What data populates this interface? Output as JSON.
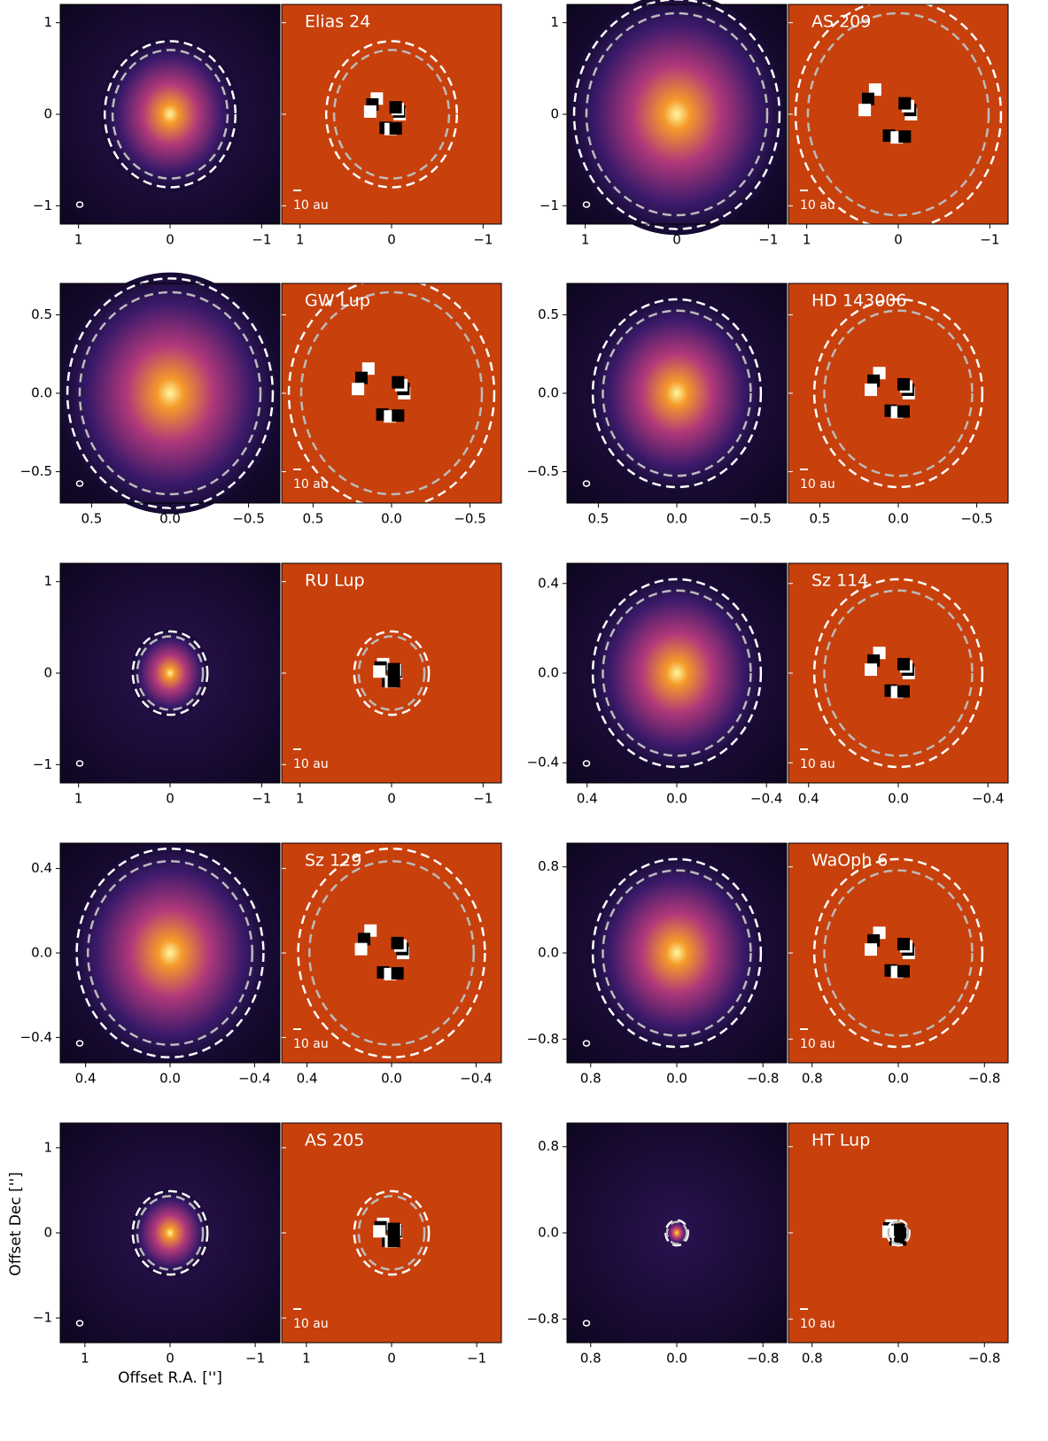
{
  "chart_data": [
    {
      "type": "image-pair",
      "title": "Elias 24",
      "scale_label": "10 au",
      "xlim": [
        1.2,
        -1.2
      ],
      "ylim": [
        -1.2,
        1.2
      ],
      "xticks": [
        1,
        0,
        {
          "value": -1,
          "label": "−1"
        }
      ],
      "yticks": [
        {
          "value": -1,
          "label": "−1"
        },
        0,
        1
      ]
    },
    {
      "type": "image-pair",
      "title": "AS 209",
      "scale_label": "10 au",
      "xlim": [
        1.2,
        -1.2
      ],
      "ylim": [
        -1.2,
        1.2
      ],
      "xticks": [
        1,
        0,
        {
          "value": -1,
          "label": "−1"
        }
      ],
      "yticks": [
        {
          "value": -1,
          "label": "−1"
        },
        0,
        1
      ]
    },
    {
      "type": "image-pair",
      "title": "GW Lup",
      "scale_label": "10 au",
      "xlim": [
        0.7,
        -0.7
      ],
      "ylim": [
        -0.7,
        0.7
      ],
      "xticks": [
        0.5,
        {
          "value": 0,
          "label": "0.0"
        },
        {
          "value": -0.5,
          "label": "−0.5"
        }
      ],
      "yticks": [
        {
          "value": -0.5,
          "label": "−0.5"
        },
        {
          "value": 0,
          "label": "0.0"
        },
        0.5
      ]
    },
    {
      "type": "image-pair",
      "title": "HD 143006",
      "scale_label": "10 au",
      "xlim": [
        0.7,
        -0.7
      ],
      "ylim": [
        -0.7,
        0.7
      ],
      "xticks": [
        0.5,
        {
          "value": 0,
          "label": "0.0"
        },
        {
          "value": -0.5,
          "label": "−0.5"
        }
      ],
      "yticks": [
        {
          "value": -0.5,
          "label": "−0.5"
        },
        {
          "value": 0,
          "label": "0.0"
        },
        0.5
      ]
    },
    {
      "type": "image-pair",
      "title": "RU Lup",
      "scale_label": "10 au",
      "xlim": [
        1.2,
        -1.2
      ],
      "ylim": [
        -1.2,
        1.2
      ],
      "xticks": [
        1,
        0,
        {
          "value": -1,
          "label": "−1"
        }
      ],
      "yticks": [
        {
          "value": -1,
          "label": "−1"
        },
        0,
        1
      ]
    },
    {
      "type": "image-pair",
      "title": "Sz 114",
      "scale_label": "10 au",
      "xlim": [
        0.49,
        -0.49
      ],
      "ylim": [
        -0.49,
        0.49
      ],
      "xticks": [
        0.4,
        {
          "value": 0,
          "label": "0.0"
        },
        {
          "value": -0.4,
          "label": "−0.4"
        }
      ],
      "yticks": [
        {
          "value": -0.4,
          "label": "−0.4"
        },
        {
          "value": 0,
          "label": "0.0"
        },
        0.4
      ]
    },
    {
      "type": "image-pair",
      "title": "Sz 129",
      "scale_label": "10 au",
      "xlim": [
        0.52,
        -0.52
      ],
      "ylim": [
        -0.52,
        0.52
      ],
      "xticks": [
        0.4,
        {
          "value": 0,
          "label": "0.0"
        },
        {
          "value": -0.4,
          "label": "−0.4"
        }
      ],
      "yticks": [
        {
          "value": -0.4,
          "label": "−0.4"
        },
        {
          "value": 0,
          "label": "0.0"
        },
        0.4
      ]
    },
    {
      "type": "image-pair",
      "title": "WaOph 6",
      "scale_label": "10 au",
      "xlim": [
        1.02,
        -1.02
      ],
      "ylim": [
        -1.02,
        1.02
      ],
      "xticks": [
        0.8,
        {
          "value": 0,
          "label": "0.0"
        },
        {
          "value": -0.8,
          "label": "−0.8"
        }
      ],
      "yticks": [
        {
          "value": -0.8,
          "label": "−0.8"
        },
        {
          "value": 0,
          "label": "0.0"
        },
        0.8
      ]
    },
    {
      "type": "image-pair",
      "title": "AS 205",
      "scale_label": "10 au",
      "xlim": [
        1.29,
        -1.29
      ],
      "ylim": [
        -1.29,
        1.29
      ],
      "xlabel": "Offset R.A. ['']",
      "ylabel": "Offset Dec ['']",
      "xticks": [
        1,
        0,
        {
          "value": -1,
          "label": "−1"
        }
      ],
      "yticks": [
        {
          "value": -1,
          "label": "−1"
        },
        0,
        1
      ]
    },
    {
      "type": "image-pair",
      "title": "HT Lup",
      "scale_label": "10 au",
      "xlim": [
        1.02,
        -1.02
      ],
      "ylim": [
        -1.02,
        1.02
      ],
      "xticks": [
        0.8,
        {
          "value": 0,
          "label": "0.0"
        },
        {
          "value": -0.8,
          "label": "−0.8"
        }
      ],
      "yticks": [
        {
          "value": -0.8,
          "label": "−0.8"
        },
        {
          "value": 0,
          "label": "0.0"
        },
        0.8
      ]
    }
  ]
}
